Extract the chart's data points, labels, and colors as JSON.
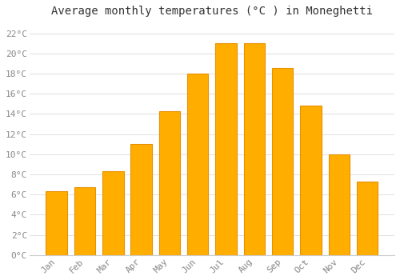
{
  "title": "Average monthly temperatures (°C ) in Moneghetti",
  "months": [
    "Jan",
    "Feb",
    "Mar",
    "Apr",
    "May",
    "Jun",
    "Jul",
    "Aug",
    "Sep",
    "Oct",
    "Nov",
    "Dec"
  ],
  "temperatures": [
    6.3,
    6.7,
    8.3,
    11.0,
    14.3,
    18.0,
    21.0,
    21.0,
    18.6,
    14.8,
    10.0,
    7.3
  ],
  "bar_color": "#FFAE00",
  "bar_edge_color": "#E89000",
  "background_color": "#FFFFFF",
  "plot_bg_color": "#FFFFFF",
  "grid_color": "#E0E0E0",
  "ylim": [
    0,
    23
  ],
  "yticks": [
    0,
    2,
    4,
    6,
    8,
    10,
    12,
    14,
    16,
    18,
    20,
    22
  ],
  "title_fontsize": 10,
  "tick_fontsize": 8,
  "tick_font_color": "#888888",
  "title_color": "#333333"
}
